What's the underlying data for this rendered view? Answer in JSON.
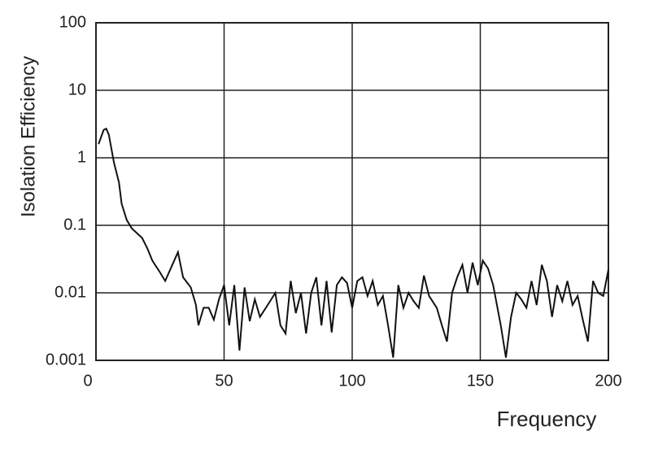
{
  "chart_data": {
    "type": "line",
    "x_label": "Frequency",
    "y_label": "Isolation Efficiency",
    "xlim": [
      0,
      200
    ],
    "xticks": [
      0,
      50,
      100,
      150,
      200
    ],
    "ylim": [
      0.001,
      100
    ],
    "yticks": [
      100,
      10,
      1,
      0.1,
      0.01,
      0.001
    ],
    "log_y": true,
    "grid": true,
    "series": [
      {
        "color": "#111111",
        "x": [
          1,
          3,
          4,
          5,
          7,
          9,
          10,
          12,
          14,
          18,
          20,
          22,
          25,
          27,
          30,
          32,
          34,
          37,
          39,
          40,
          42,
          44,
          46,
          48,
          50,
          52,
          54,
          56,
          58,
          60,
          62,
          64,
          67,
          70,
          72,
          74,
          76,
          78,
          80,
          82,
          84,
          86,
          88,
          90,
          92,
          94,
          96,
          98,
          100,
          102,
          104,
          106,
          108,
          110,
          112,
          114,
          116,
          118,
          120,
          122,
          124,
          126,
          128,
          130,
          133,
          135,
          137,
          139,
          141,
          143,
          145,
          147,
          149,
          151,
          153,
          155,
          158,
          160,
          162,
          164,
          166,
          168,
          170,
          172,
          174,
          176,
          178,
          180,
          182,
          184,
          186,
          188,
          190,
          192,
          194,
          196,
          198,
          200
        ],
        "values": [
          1.6,
          2.6,
          2.7,
          2.2,
          0.85,
          0.43,
          0.21,
          0.12,
          0.09,
          0.065,
          0.046,
          0.03,
          0.02,
          0.015,
          0.027,
          0.04,
          0.017,
          0.012,
          0.0066,
          0.0033,
          0.006,
          0.006,
          0.004,
          0.008,
          0.013,
          0.0033,
          0.013,
          0.0014,
          0.012,
          0.0038,
          0.008,
          0.0044,
          0.0066,
          0.01,
          0.0033,
          0.0025,
          0.015,
          0.005,
          0.01,
          0.0025,
          0.01,
          0.017,
          0.0033,
          0.015,
          0.0026,
          0.013,
          0.017,
          0.014,
          0.006,
          0.015,
          0.017,
          0.009,
          0.015,
          0.0066,
          0.009,
          0.0033,
          0.0011,
          0.013,
          0.006,
          0.01,
          0.0075,
          0.006,
          0.018,
          0.009,
          0.006,
          0.0033,
          0.0019,
          0.01,
          0.017,
          0.026,
          0.01,
          0.028,
          0.013,
          0.03,
          0.023,
          0.013,
          0.0033,
          0.0011,
          0.0044,
          0.01,
          0.008,
          0.006,
          0.015,
          0.0066,
          0.026,
          0.015,
          0.0044,
          0.013,
          0.0075,
          0.015,
          0.0066,
          0.009,
          0.004,
          0.0019,
          0.015,
          0.01,
          0.009,
          0.022
        ]
      }
    ]
  }
}
